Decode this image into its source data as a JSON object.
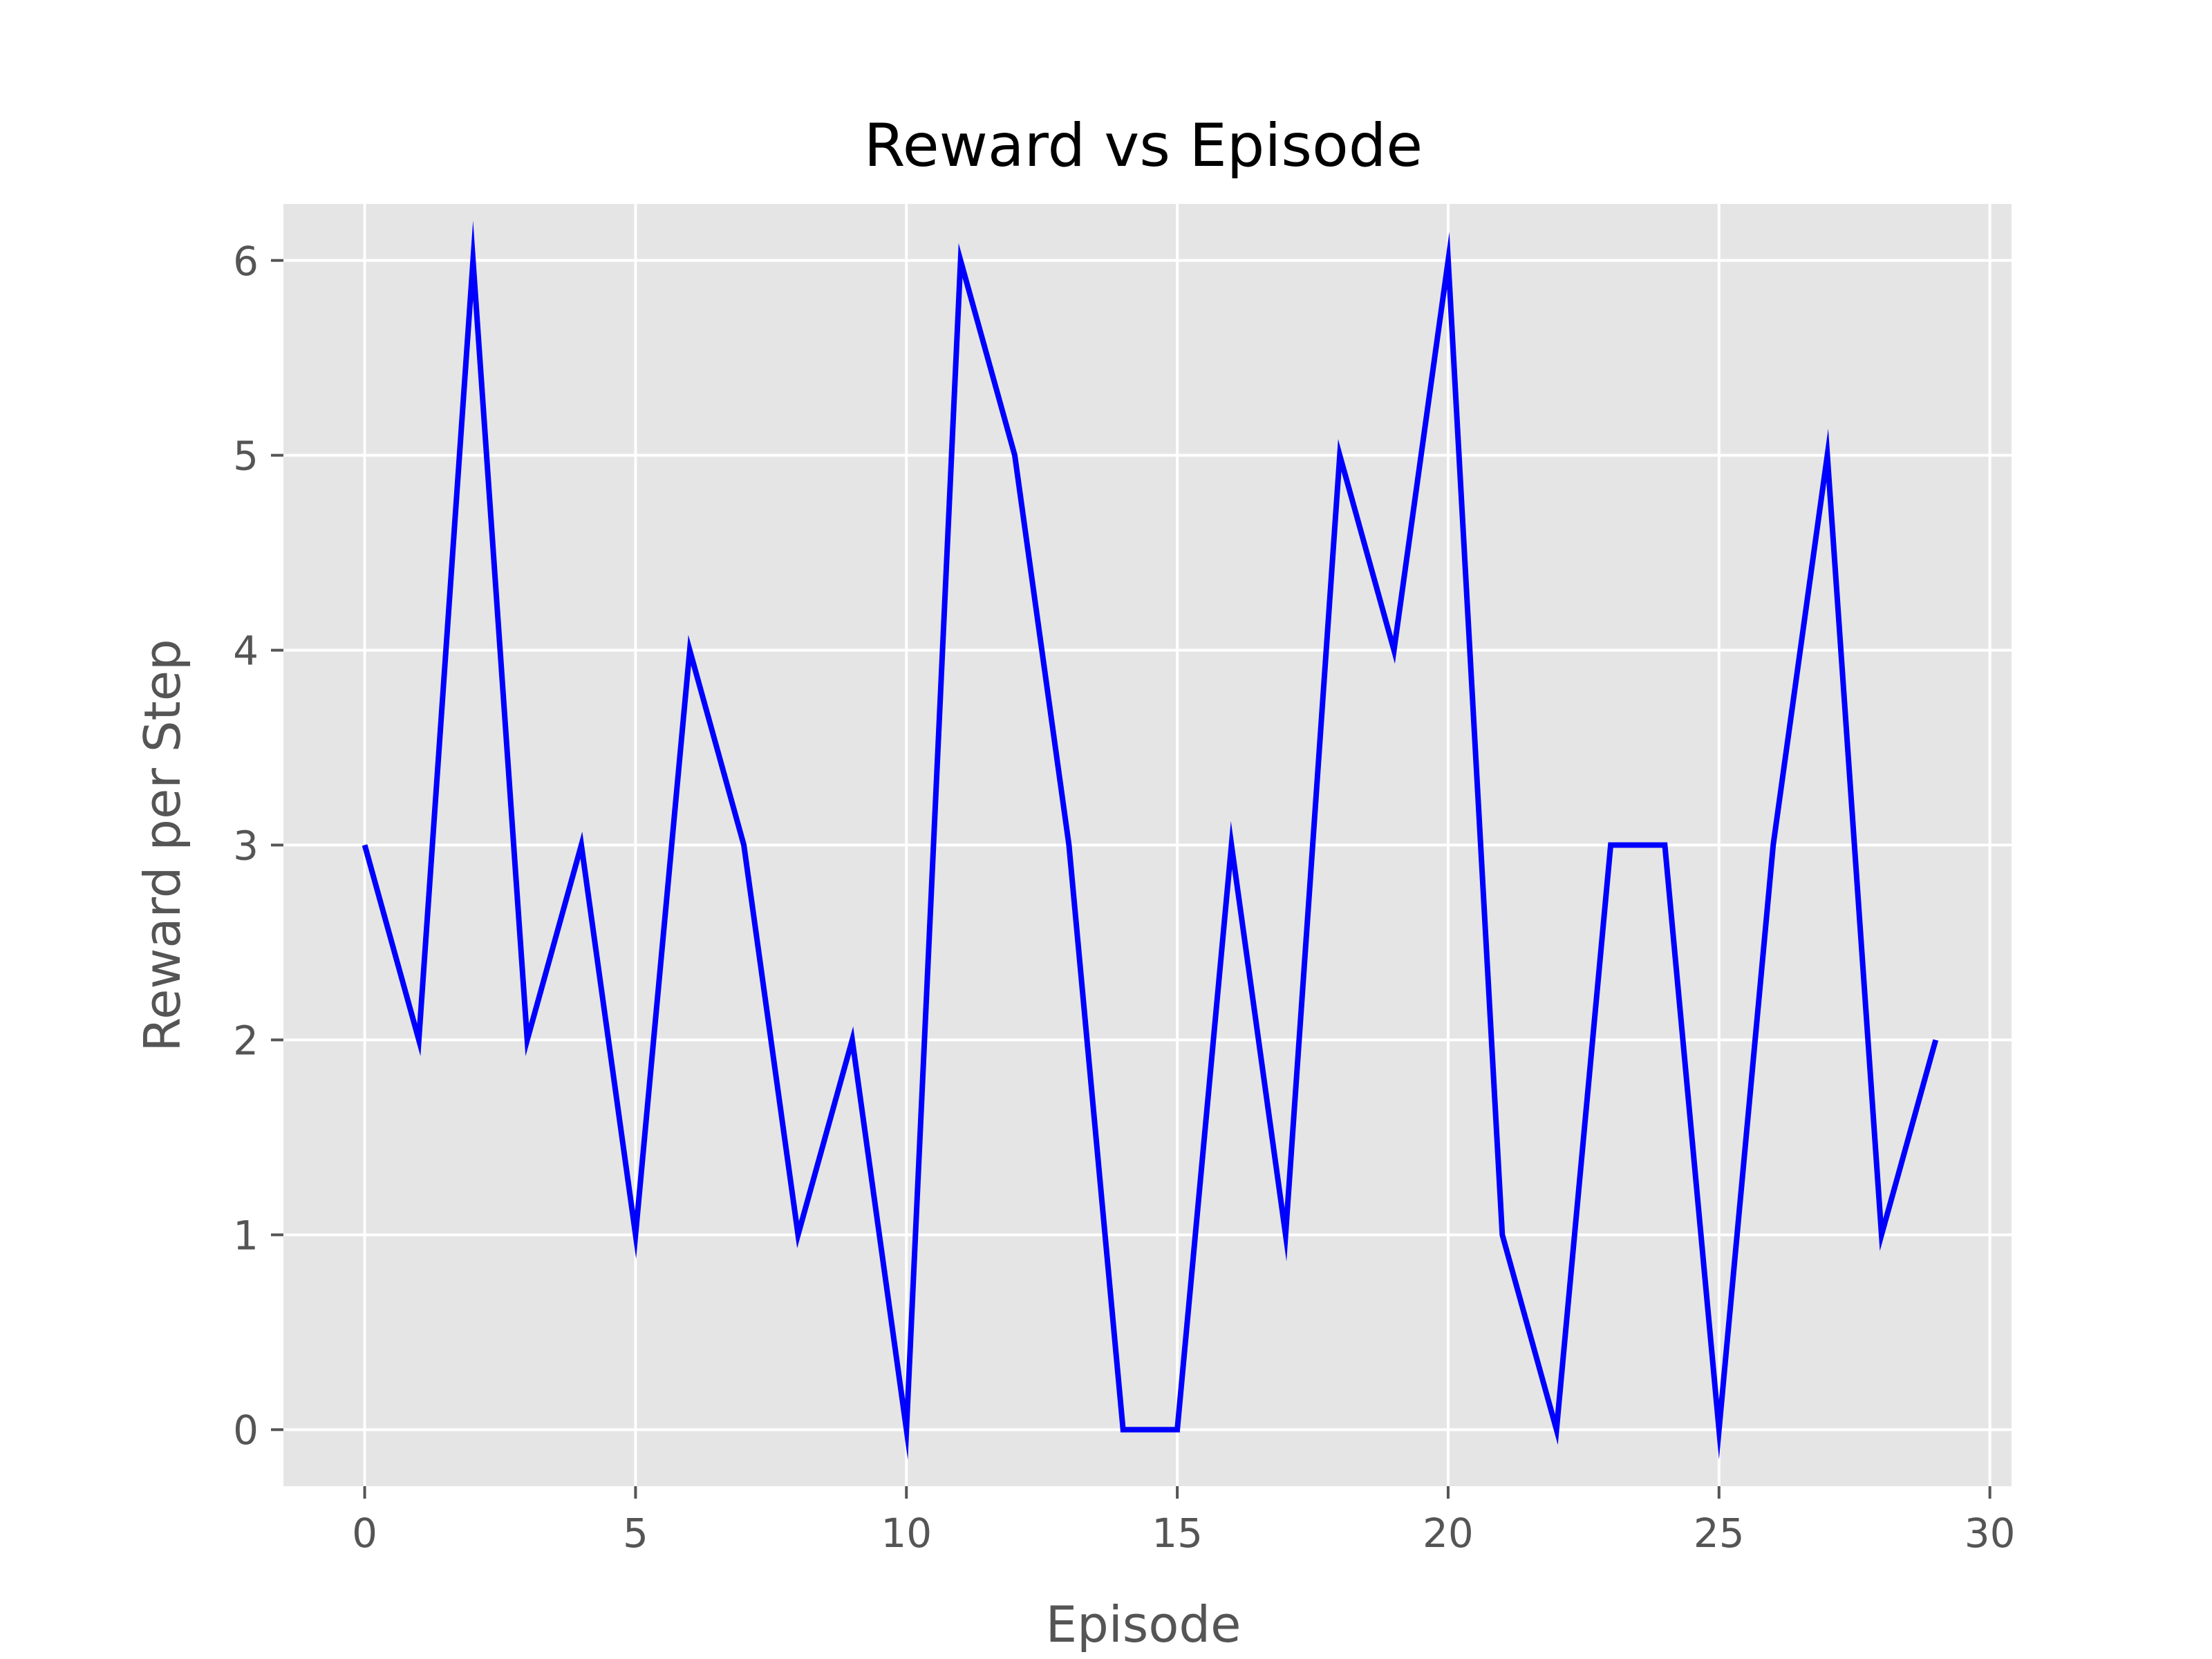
{
  "chart_data": {
    "type": "line",
    "title": "Reward vs Episode",
    "xlabel": "Episode",
    "ylabel": "Reward per Step",
    "xlim": [
      -1.5,
      30.4
    ],
    "ylim": [
      -0.29,
      6.29
    ],
    "xticks": [
      0,
      5,
      10,
      15,
      20,
      25,
      30
    ],
    "yticks": [
      0,
      1,
      2,
      3,
      4,
      5,
      6
    ],
    "grid": true,
    "background_color": "#e5e5e5",
    "grid_color": "#ffffff",
    "series": [
      {
        "color": "#0000ff",
        "x": [
          0,
          1,
          2,
          3,
          4,
          5,
          6,
          7,
          8,
          9,
          10,
          11,
          12,
          13,
          14,
          15,
          16,
          17,
          18,
          19,
          20,
          21,
          22,
          23,
          24,
          25,
          26,
          27,
          28,
          29
        ],
        "y": [
          3,
          2,
          6,
          2,
          3,
          1,
          4,
          3,
          1,
          2,
          0,
          6,
          5,
          3,
          0,
          0,
          3,
          1,
          5,
          4,
          6,
          1,
          0,
          3,
          3,
          0,
          3,
          5,
          1,
          2
        ]
      }
    ]
  }
}
